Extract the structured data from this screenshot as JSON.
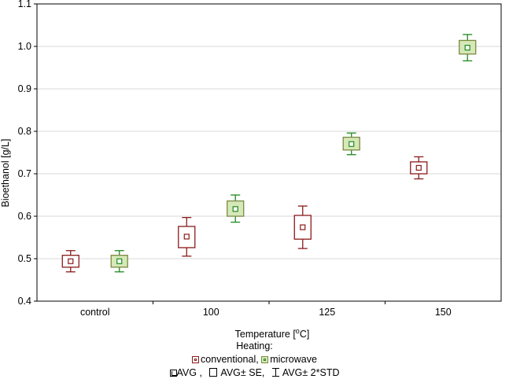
{
  "chart_data": {
    "type": "box",
    "title": "",
    "xlabel": "Temperature [",
    "xlabel_sup": "o",
    "xlabel_unit": "C]",
    "ylabel": "Bioethanol [g/L]",
    "ylim": [
      0.4,
      1.1
    ],
    "yticks": [
      "0.4",
      "0.5",
      "0.6",
      "0.7",
      "0.8",
      "0.9",
      "1.0",
      "1.1"
    ],
    "ytick_values": [
      0.4,
      0.5,
      0.6,
      0.7,
      0.8,
      0.9,
      1.0,
      1.1
    ],
    "categories": [
      "control",
      "100",
      "125",
      "150"
    ],
    "grid": true,
    "series": [
      {
        "name": "conventional",
        "color": "#8b1a1a",
        "fill": "#ffffff",
        "avg": [
          0.494,
          0.552,
          0.574,
          0.714
        ],
        "se_low": [
          0.48,
          0.526,
          0.546,
          0.7
        ],
        "se_high": [
          0.508,
          0.576,
          0.602,
          0.728
        ],
        "std_low": [
          0.469,
          0.506,
          0.524,
          0.688
        ],
        "std_high": [
          0.519,
          0.597,
          0.624,
          0.74
        ]
      },
      {
        "name": "microwave",
        "color": "#1e8a1e",
        "fill": "#d6e8b8",
        "avg": [
          0.494,
          0.617,
          0.77,
          0.997
        ],
        "se_low": [
          0.48,
          0.6,
          0.756,
          0.982
        ],
        "se_high": [
          0.508,
          0.636,
          0.786,
          1.014
        ],
        "std_low": [
          0.469,
          0.586,
          0.745,
          0.966
        ],
        "std_high": [
          0.519,
          0.65,
          0.796,
          1.028
        ]
      }
    ]
  },
  "legend": {
    "title": "Heating:",
    "items": [
      "conventional,",
      "microwave"
    ],
    "stats": [
      "AVG ,",
      "AVG± SE,",
      "AVG± 2*STD"
    ]
  }
}
